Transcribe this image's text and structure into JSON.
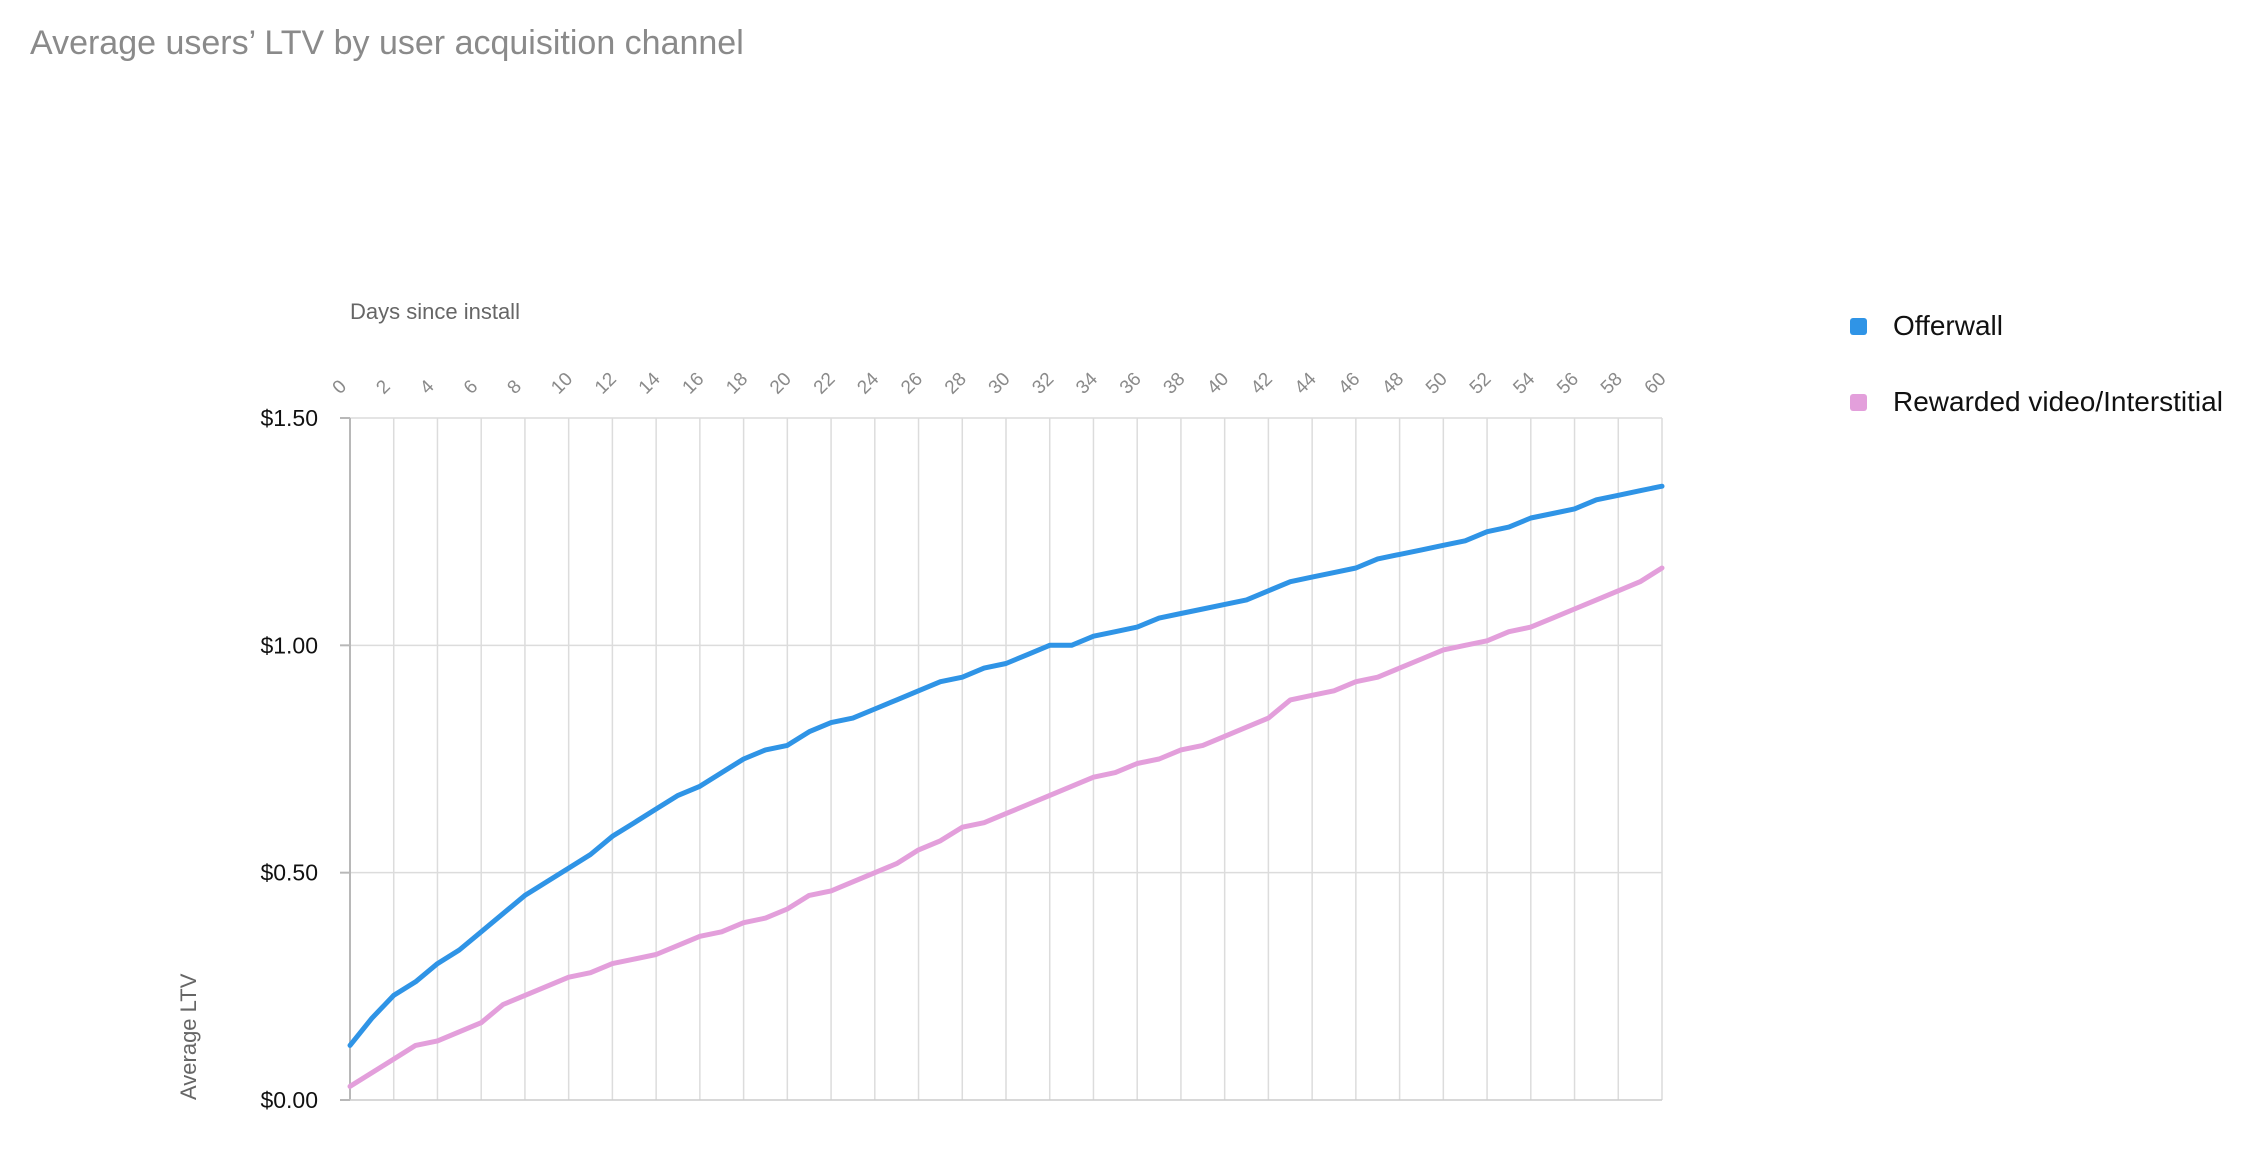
{
  "title": "Average users’ LTV by user acquisition channel",
  "legend": [
    {
      "label": "Offerwall",
      "color": "#2f94e6"
    },
    {
      "label": "Rewarded video/Interstitial",
      "color": "#e39fdb"
    }
  ],
  "chart_data": {
    "type": "line",
    "title": "Average users’ LTV by user acquisition channel",
    "xlabel": "Days since install",
    "ylabel": "Average LTV",
    "xlim": [
      0,
      60
    ],
    "ylim": [
      0,
      1.5
    ],
    "x_ticks": [
      0,
      2,
      4,
      6,
      8,
      10,
      12,
      14,
      16,
      18,
      20,
      22,
      24,
      26,
      28,
      30,
      32,
      34,
      36,
      38,
      40,
      42,
      44,
      46,
      48,
      50,
      52,
      54,
      56,
      58,
      60
    ],
    "y_ticks": [
      0,
      0.5,
      1.0,
      1.5
    ],
    "y_tick_labels": [
      "$0.00",
      "$0.50",
      "$1.00",
      "$1.50"
    ],
    "x_axis_position": "top",
    "grid": true,
    "legend_position": "right",
    "x": [
      0,
      1,
      2,
      3,
      4,
      5,
      6,
      7,
      8,
      9,
      10,
      11,
      12,
      13,
      14,
      15,
      16,
      17,
      18,
      19,
      20,
      21,
      22,
      23,
      24,
      25,
      26,
      27,
      28,
      29,
      30,
      31,
      32,
      33,
      34,
      35,
      36,
      37,
      38,
      39,
      40,
      41,
      42,
      43,
      44,
      45,
      46,
      47,
      48,
      49,
      50,
      51,
      52,
      53,
      54,
      55,
      56,
      57,
      58,
      59,
      60
    ],
    "series": [
      {
        "name": "Offerwall",
        "color": "#2f94e6",
        "values": [
          0.12,
          0.18,
          0.23,
          0.26,
          0.3,
          0.33,
          0.37,
          0.41,
          0.45,
          0.48,
          0.51,
          0.54,
          0.58,
          0.61,
          0.64,
          0.67,
          0.69,
          0.72,
          0.75,
          0.77,
          0.78,
          0.81,
          0.83,
          0.84,
          0.86,
          0.88,
          0.9,
          0.92,
          0.93,
          0.95,
          0.96,
          0.98,
          1.0,
          1.0,
          1.02,
          1.03,
          1.04,
          1.06,
          1.07,
          1.08,
          1.09,
          1.1,
          1.12,
          1.14,
          1.15,
          1.16,
          1.17,
          1.19,
          1.2,
          1.21,
          1.22,
          1.23,
          1.25,
          1.26,
          1.28,
          1.29,
          1.3,
          1.32,
          1.33,
          1.34,
          1.35
        ]
      },
      {
        "name": "Rewarded video/Interstitial",
        "color": "#e39fdb",
        "values": [
          0.03,
          0.06,
          0.09,
          0.12,
          0.13,
          0.15,
          0.17,
          0.21,
          0.23,
          0.25,
          0.27,
          0.28,
          0.3,
          0.31,
          0.32,
          0.34,
          0.36,
          0.37,
          0.39,
          0.4,
          0.42,
          0.45,
          0.46,
          0.48,
          0.5,
          0.52,
          0.55,
          0.57,
          0.6,
          0.61,
          0.63,
          0.65,
          0.67,
          0.69,
          0.71,
          0.72,
          0.74,
          0.75,
          0.77,
          0.78,
          0.8,
          0.82,
          0.84,
          0.88,
          0.89,
          0.9,
          0.92,
          0.93,
          0.95,
          0.97,
          0.99,
          1.0,
          1.01,
          1.03,
          1.04,
          1.06,
          1.08,
          1.1,
          1.12,
          1.14,
          1.17
        ]
      }
    ]
  }
}
